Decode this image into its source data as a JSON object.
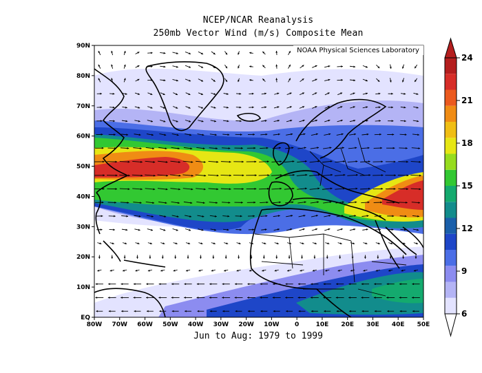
{
  "header": {
    "title_line1": "NCEP/NCAR Reanalysis",
    "title_line2": "250mb Vector Wind (m/s) Composite Mean",
    "source": "NOAA Physical Sciences Laboratory",
    "period": "Jun to Aug: 1979 to 1999"
  },
  "map": {
    "type": "filled-contour wind-speed map with wind vectors",
    "lon_range": [
      -80,
      50
    ],
    "lat_range": [
      0,
      90
    ],
    "lon_ticks": [
      "80W",
      "70W",
      "60W",
      "50W",
      "40W",
      "30W",
      "20W",
      "10W",
      "0",
      "10E",
      "20E",
      "30E",
      "40E",
      "50E"
    ],
    "lat_ticks": [
      "EQ",
      "10N",
      "20N",
      "30N",
      "40N",
      "50N",
      "60N",
      "70N",
      "80N",
      "90N"
    ]
  },
  "colorbar": {
    "ticks": [
      "6",
      "9",
      "12",
      "15",
      "18",
      "21",
      "24"
    ],
    "colors": [
      "#e3e3ff",
      "#b4b4f5",
      "#8c8cf0",
      "#4b6ee6",
      "#1e46c8",
      "#1a5faa",
      "#128c8c",
      "#14aa6e",
      "#32c832",
      "#96dc1e",
      "#e6e614",
      "#f0be14",
      "#f08c14",
      "#eb5a1e",
      "#d72d28",
      "#b41e1e"
    ]
  }
}
